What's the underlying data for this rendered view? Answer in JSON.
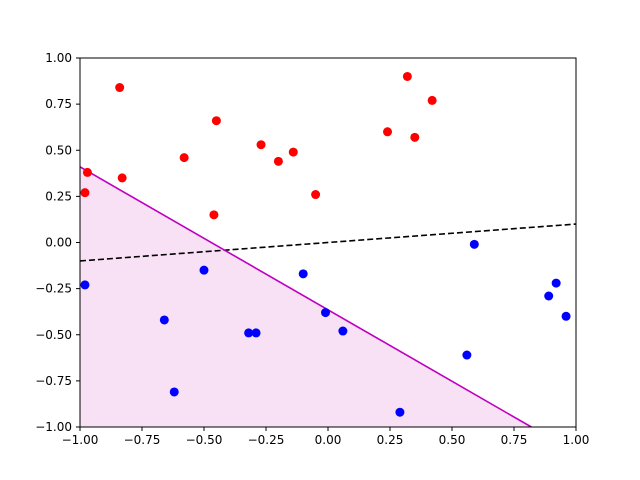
{
  "chart_data": {
    "type": "scatter",
    "xlim": [
      -1.0,
      1.0
    ],
    "ylim": [
      -1.0,
      1.0
    ],
    "x_ticks": [
      -1.0,
      -0.75,
      -0.5,
      -0.25,
      0.0,
      0.25,
      0.5,
      0.75,
      1.0
    ],
    "y_ticks": [
      -1.0,
      -0.75,
      -0.5,
      -0.25,
      0.0,
      0.25,
      0.5,
      0.75,
      1.0
    ],
    "x_tick_labels": [
      "−1.00",
      "−0.75",
      "−0.50",
      "−0.25",
      "0.00",
      "0.25",
      "0.50",
      "0.75",
      "1.00"
    ],
    "y_tick_labels": [
      "−1.00",
      "−0.75",
      "−0.50",
      "−0.25",
      "0.00",
      "0.25",
      "0.50",
      "0.75",
      "1.00"
    ],
    "grid": false,
    "series": [
      {
        "color": "#ff0000",
        "points": [
          [
            -0.98,
            0.27
          ],
          [
            -0.97,
            0.38
          ],
          [
            -0.84,
            0.84
          ],
          [
            -0.83,
            0.35
          ],
          [
            -0.58,
            0.46
          ],
          [
            -0.46,
            0.15
          ],
          [
            -0.45,
            0.66
          ],
          [
            -0.27,
            0.53
          ],
          [
            -0.2,
            0.44
          ],
          [
            -0.14,
            0.49
          ],
          [
            -0.05,
            0.26
          ],
          [
            0.24,
            0.6
          ],
          [
            0.32,
            0.9
          ],
          [
            0.35,
            0.57
          ],
          [
            0.42,
            0.77
          ]
        ]
      },
      {
        "color": "#0000ff",
        "points": [
          [
            -0.98,
            -0.23
          ],
          [
            -0.66,
            -0.42
          ],
          [
            -0.62,
            -0.81
          ],
          [
            -0.5,
            -0.15
          ],
          [
            -0.32,
            -0.49
          ],
          [
            -0.29,
            -0.49
          ],
          [
            -0.1,
            -0.17
          ],
          [
            -0.01,
            -0.38
          ],
          [
            0.06,
            -0.48
          ],
          [
            0.29,
            -0.92
          ],
          [
            0.56,
            -0.61
          ],
          [
            0.59,
            -0.01
          ],
          [
            0.89,
            -0.29
          ],
          [
            0.92,
            -0.22
          ],
          [
            0.96,
            -0.4
          ]
        ]
      }
    ],
    "lines": [
      {
        "style": "dashed",
        "color": "#000000",
        "x": [
          -1.0,
          1.0
        ],
        "y": [
          -0.1,
          0.1
        ]
      },
      {
        "style": "solid",
        "color": "#bf00bf",
        "x": [
          -1.0,
          0.82
        ],
        "y": [
          0.41,
          -1.0
        ]
      }
    ],
    "shaded_region": {
      "color": "#f8e1f4",
      "polygon": [
        [
          -1.0,
          0.41
        ],
        [
          0.82,
          -1.0
        ],
        [
          -1.0,
          -1.0
        ]
      ]
    }
  }
}
